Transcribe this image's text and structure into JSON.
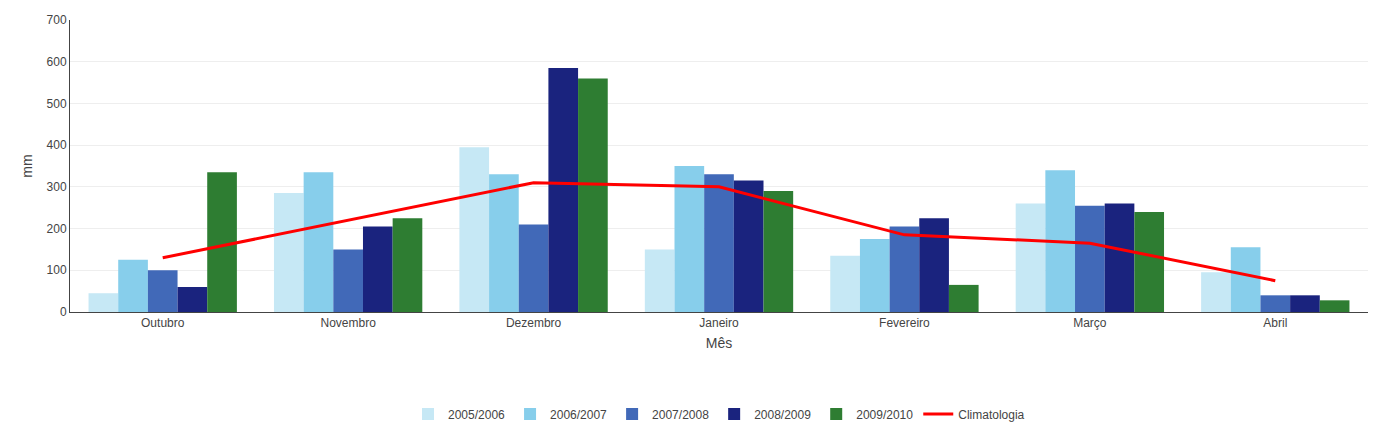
{
  "chart_data": {
    "type": "bar",
    "xlabel": "Mês",
    "ylabel": "mm",
    "categories": [
      "Outubro",
      "Novembro",
      "Dezembro",
      "Janeiro",
      "Fevereiro",
      "Março",
      "Abril"
    ],
    "series": [
      {
        "name": "2005/2006",
        "color": "#c6e8f5",
        "values": [
          45,
          285,
          395,
          150,
          135,
          260,
          95
        ]
      },
      {
        "name": "2006/2007",
        "color": "#87ceeb",
        "values": [
          125,
          335,
          330,
          350,
          175,
          340,
          155
        ]
      },
      {
        "name": "2007/2008",
        "color": "#4169b8",
        "values": [
          100,
          150,
          210,
          330,
          205,
          255,
          40
        ]
      },
      {
        "name": "2008/2009",
        "color": "#1a237e",
        "values": [
          60,
          205,
          585,
          315,
          225,
          260,
          40
        ]
      },
      {
        "name": "2009/2010",
        "color": "#2e7d32",
        "values": [
          335,
          225,
          560,
          290,
          65,
          240,
          28
        ]
      },
      {
        "name": "Climatologia",
        "type": "line",
        "color": "#ff0000",
        "values": [
          130,
          220,
          310,
          300,
          185,
          165,
          75
        ]
      }
    ],
    "ylim": [
      0,
      700
    ],
    "yticks": [
      0,
      100,
      200,
      300,
      400,
      500,
      600,
      700
    ],
    "grid": true,
    "legend": "bottom"
  }
}
